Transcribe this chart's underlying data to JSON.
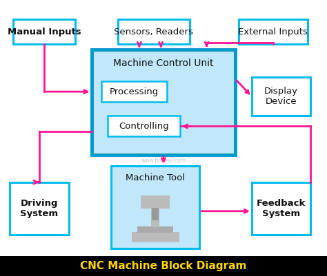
{
  "title": "CNC Machine Block Diagram",
  "title_color": "#FFD700",
  "title_bg": "#000000",
  "BC": "#00BBEE",
  "AC": "#FF1493",
  "mcu_fill": "#C0E8FA",
  "mcu_border": "#0099CC",
  "bg": "#FFFFFF",
  "MI": [
    0.04,
    0.84,
    0.19,
    0.09
  ],
  "SR": [
    0.36,
    0.84,
    0.22,
    0.09
  ],
  "EI": [
    0.73,
    0.84,
    0.21,
    0.09
  ],
  "DD": [
    0.77,
    0.58,
    0.18,
    0.14
  ],
  "MCU": [
    0.28,
    0.44,
    0.44,
    0.38
  ],
  "PR": [
    0.31,
    0.63,
    0.2,
    0.075
  ],
  "CT": [
    0.33,
    0.505,
    0.22,
    0.075
  ],
  "MT": [
    0.34,
    0.1,
    0.27,
    0.3
  ],
  "DS": [
    0.03,
    0.15,
    0.18,
    0.19
  ],
  "FS": [
    0.77,
    0.15,
    0.18,
    0.19
  ]
}
